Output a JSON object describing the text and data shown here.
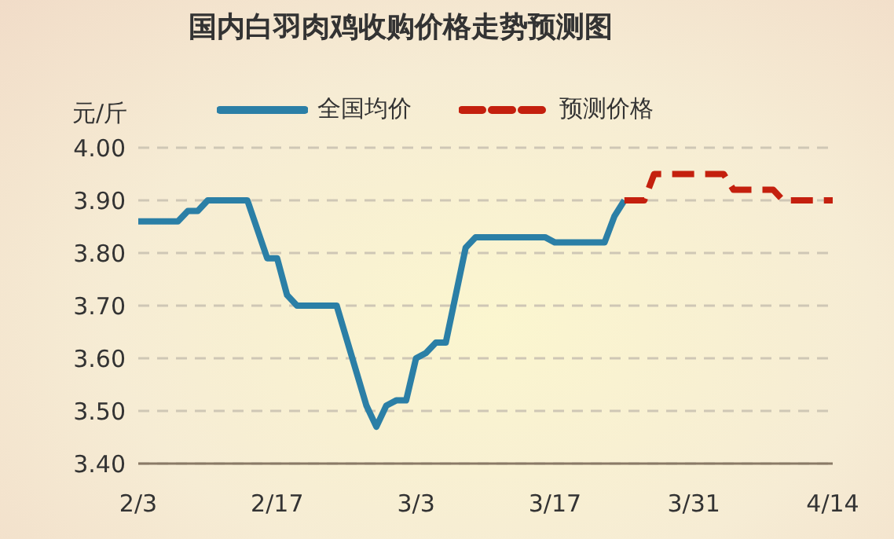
{
  "chart_data": {
    "type": "line",
    "title": "国内白羽肉鸡收购价格走势预测图",
    "ylabel": "元/斤",
    "series": [
      {
        "name": "全国均价",
        "color": "#2b7fa6",
        "line_style": "solid",
        "x": [
          "--02-03",
          "--02-07",
          "--02-08",
          "--02-09",
          "--02-10",
          "--02-14",
          "--02-16",
          "--02-17",
          "--02-18",
          "--02-19",
          "--02-23",
          "--02-26",
          "--02-27",
          "--02-28",
          "--03-01",
          "--03-02",
          "--03-03",
          "--03-04",
          "--03-05",
          "--03-06",
          "--03-08",
          "--03-09",
          "--03-16",
          "--03-17",
          "--03-22",
          "--03-23",
          "--03-24"
        ],
        "values": [
          3.86,
          3.86,
          3.88,
          3.88,
          3.9,
          3.9,
          3.79,
          3.79,
          3.72,
          3.7,
          3.7,
          3.51,
          3.47,
          3.51,
          3.52,
          3.52,
          3.6,
          3.61,
          3.63,
          3.63,
          3.81,
          3.83,
          3.83,
          3.82,
          3.82,
          3.87,
          3.9
        ]
      },
      {
        "name": "预测价格",
        "color": "#c4200e",
        "line_style": "dashed",
        "x": [
          "--03-24",
          "--03-26",
          "--03-27",
          "--04-03",
          "--04-04",
          "--04-08",
          "--04-09",
          "--04-14"
        ],
        "values": [
          3.9,
          3.9,
          3.95,
          3.95,
          3.92,
          3.92,
          3.9,
          3.9
        ]
      }
    ],
    "xlim": [
      "--02-03",
      "--04-14"
    ],
    "xticks": [
      {
        "value": "--02-03",
        "label": "2/3"
      },
      {
        "value": "--02-17",
        "label": "2/17"
      },
      {
        "value": "--03-03",
        "label": "3/3"
      },
      {
        "value": "--03-17",
        "label": "3/17"
      },
      {
        "value": "--03-31",
        "label": "3/31"
      },
      {
        "value": "--04-14",
        "label": "4/14"
      }
    ],
    "ylim": [
      3.4,
      4.0
    ],
    "yticks": [
      {
        "value": 3.4,
        "label": "3.40"
      },
      {
        "value": 3.5,
        "label": "3.50"
      },
      {
        "value": 3.6,
        "label": "3.60"
      },
      {
        "value": 3.7,
        "label": "3.70"
      },
      {
        "value": 3.8,
        "label": "3.80"
      },
      {
        "value": 3.9,
        "label": "3.90"
      },
      {
        "value": 4.0,
        "label": "4.00"
      }
    ],
    "grid": "y",
    "legend": "top",
    "marker": "none"
  }
}
